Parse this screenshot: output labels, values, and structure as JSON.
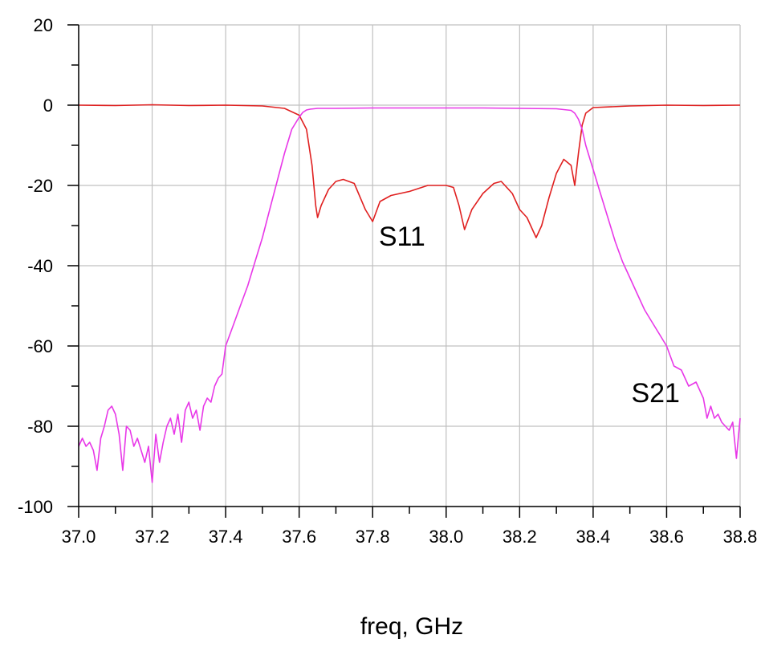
{
  "chart_data": {
    "type": "line",
    "xlabel": "freq, GHz",
    "ylabel": "",
    "xlim": [
      37.0,
      38.8
    ],
    "ylim": [
      -100,
      20
    ],
    "x_ticks": [
      "37.0",
      "37.2",
      "37.4",
      "37.6",
      "37.8",
      "38.0",
      "38.2",
      "38.4",
      "38.6",
      "38.8"
    ],
    "y_ticks": [
      "20",
      "0",
      "-20",
      "-40",
      "-60",
      "-80",
      "-100"
    ],
    "grid": true,
    "colors": {
      "S11": "#e02020",
      "S21": "#e838e8",
      "grid": "#c0c0c0",
      "axis": "#000000"
    },
    "annotations": [
      {
        "text": "S11",
        "x": 37.88,
        "y": -35
      },
      {
        "text": "S21",
        "x": 38.57,
        "y": -74
      }
    ],
    "series": [
      {
        "name": "S11",
        "x": [
          37.0,
          37.1,
          37.2,
          37.3,
          37.4,
          37.5,
          37.56,
          37.6,
          37.62,
          37.635,
          37.645,
          37.65,
          37.66,
          37.68,
          37.7,
          37.72,
          37.75,
          37.78,
          37.8,
          37.82,
          37.85,
          37.9,
          37.95,
          38.0,
          38.02,
          38.035,
          38.05,
          38.07,
          38.1,
          38.13,
          38.15,
          38.18,
          38.2,
          38.22,
          38.245,
          38.26,
          38.28,
          38.3,
          38.32,
          38.34,
          38.35,
          38.36,
          38.37,
          38.38,
          38.4,
          38.5,
          38.6,
          38.7,
          38.8
        ],
        "values": [
          0,
          -0.1,
          0.1,
          -0.1,
          0,
          -0.2,
          -0.8,
          -2.5,
          -6,
          -15,
          -25,
          -28,
          -25,
          -21,
          -19,
          -18.5,
          -19.5,
          -26,
          -29,
          -24,
          -22.5,
          -21.5,
          -20,
          -20,
          -20.5,
          -25,
          -31,
          -26,
          -22,
          -19.5,
          -19,
          -22,
          -26,
          -28,
          -33,
          -30,
          -23,
          -17,
          -13.5,
          -15,
          -20,
          -12,
          -5,
          -2,
          -0.6,
          -0.2,
          0,
          -0.1,
          0
        ]
      },
      {
        "name": "S21",
        "x": [
          37.0,
          37.01,
          37.02,
          37.03,
          37.04,
          37.05,
          37.06,
          37.07,
          37.08,
          37.09,
          37.1,
          37.11,
          37.12,
          37.13,
          37.14,
          37.15,
          37.16,
          37.17,
          37.18,
          37.19,
          37.2,
          37.21,
          37.22,
          37.23,
          37.24,
          37.25,
          37.26,
          37.27,
          37.28,
          37.29,
          37.3,
          37.31,
          37.32,
          37.33,
          37.34,
          37.35,
          37.36,
          37.37,
          37.38,
          37.39,
          37.4,
          37.42,
          37.44,
          37.46,
          37.48,
          37.5,
          37.52,
          37.54,
          37.56,
          37.58,
          37.6,
          37.61,
          37.62,
          37.63,
          37.64,
          37.65,
          37.7,
          37.8,
          37.9,
          38.0,
          38.1,
          38.2,
          38.3,
          38.34,
          38.35,
          38.36,
          38.37,
          38.38,
          38.39,
          38.4,
          38.42,
          38.44,
          38.46,
          38.48,
          38.5,
          38.52,
          38.54,
          38.56,
          38.58,
          38.6,
          38.62,
          38.64,
          38.66,
          38.68,
          38.7,
          38.71,
          38.72,
          38.73,
          38.74,
          38.75,
          38.76,
          38.77,
          38.78,
          38.79,
          38.8
        ],
        "values": [
          -85,
          -83,
          -85,
          -84,
          -86,
          -91,
          -83,
          -80,
          -76,
          -75,
          -77,
          -82,
          -91,
          -80,
          -81,
          -85,
          -83,
          -86,
          -89,
          -85,
          -94,
          -82,
          -89,
          -84,
          -80,
          -78,
          -82,
          -77,
          -84,
          -76,
          -74,
          -78,
          -76,
          -81,
          -75,
          -73,
          -74,
          -70,
          -68,
          -67,
          -60,
          -55,
          -50,
          -45,
          -39,
          -33,
          -26,
          -19,
          -12,
          -6,
          -3,
          -1.8,
          -1.2,
          -1,
          -0.9,
          -0.8,
          -0.8,
          -0.7,
          -0.7,
          -0.7,
          -0.7,
          -0.8,
          -0.9,
          -1.3,
          -2,
          -3.5,
          -6,
          -10,
          -13,
          -16,
          -22,
          -28,
          -34,
          -39,
          -43,
          -47,
          -51,
          -54,
          -57,
          -60,
          -65,
          -66,
          -70,
          -69,
          -73,
          -78,
          -75,
          -78,
          -77,
          -79,
          -80,
          -81,
          -79,
          -88,
          -78
        ]
      }
    ]
  }
}
